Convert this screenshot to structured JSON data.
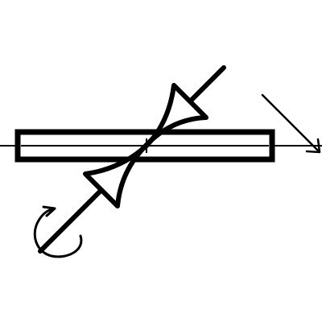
{
  "diagram": {
    "stroke_color": "#000000",
    "background_color": "#ffffff",
    "icons": [
      "waveguide-section-icon",
      "adjustable-plunger-icon",
      "rotation-arrow-icon",
      "direction-arrow-icon"
    ]
  }
}
